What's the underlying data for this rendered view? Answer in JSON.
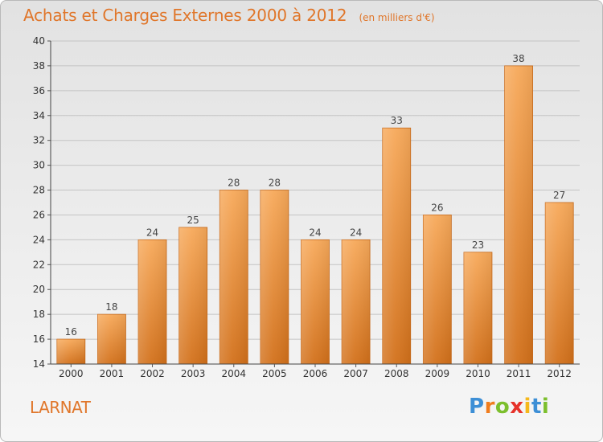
{
  "chart_data": {
    "type": "bar",
    "title": "Achats et Charges Externes 2000 à 2012",
    "unit": "(en milliers d'€)",
    "categories": [
      "2000",
      "2001",
      "2002",
      "2003",
      "2004",
      "2005",
      "2006",
      "2007",
      "2008",
      "2009",
      "2010",
      "2011",
      "2012"
    ],
    "values": [
      16,
      18,
      24,
      25,
      28,
      28,
      24,
      24,
      33,
      26,
      23,
      38,
      27
    ],
    "ylim": [
      14,
      40
    ],
    "yticks": [
      14,
      16,
      18,
      20,
      22,
      24,
      26,
      28,
      30,
      32,
      34,
      36,
      38,
      40
    ],
    "grid": true,
    "colors": {
      "bar_top": "#f7a95a",
      "bar_bottom": "#d2701a",
      "bar_edge": "#c96a1a",
      "title": "#e0762a",
      "grid": "#c4c4c4"
    }
  },
  "place": "LARNAT",
  "logo": {
    "text": "Proxiti",
    "letters": [
      {
        "ch": "P",
        "color": "#3d8fd6"
      },
      {
        "ch": "r",
        "color": "#f07d1e"
      },
      {
        "ch": "o",
        "color": "#7cbf2d"
      },
      {
        "ch": "x",
        "color": "#e6322a"
      },
      {
        "ch": "i",
        "color": "#f5b81c"
      },
      {
        "ch": "t",
        "color": "#3d8fd6"
      },
      {
        "ch": "i",
        "color": "#7cbf2d"
      }
    ]
  }
}
